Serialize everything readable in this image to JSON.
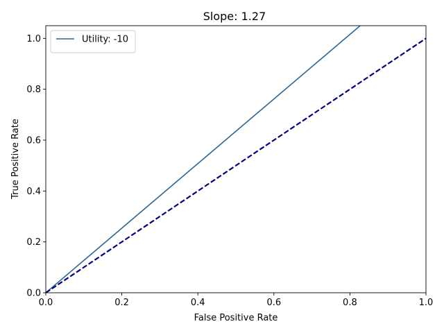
{
  "chart_data": {
    "type": "line",
    "title": "Slope: 1.27",
    "xlabel": "False Positive Rate",
    "ylabel": "True Positive Rate",
    "xlim": [
      0.0,
      1.0
    ],
    "ylim": [
      0.0,
      1.05
    ],
    "xticks": [
      "0.0",
      "0.2",
      "0.4",
      "0.6",
      "0.8",
      "1.0"
    ],
    "yticks": [
      "0.0",
      "0.2",
      "0.4",
      "0.6",
      "0.8",
      "1.0"
    ],
    "grid": false,
    "legend_position": "upper-left",
    "series": [
      {
        "name": "Utility: -10",
        "x": [
          0.0,
          0.827
        ],
        "y": [
          0.0,
          1.05
        ],
        "color": "#2f6591",
        "style": "solid"
      },
      {
        "x": [
          0.0,
          1.0
        ],
        "y": [
          0.0,
          1.0
        ],
        "color": "#00007f",
        "style": "dashed"
      }
    ]
  }
}
